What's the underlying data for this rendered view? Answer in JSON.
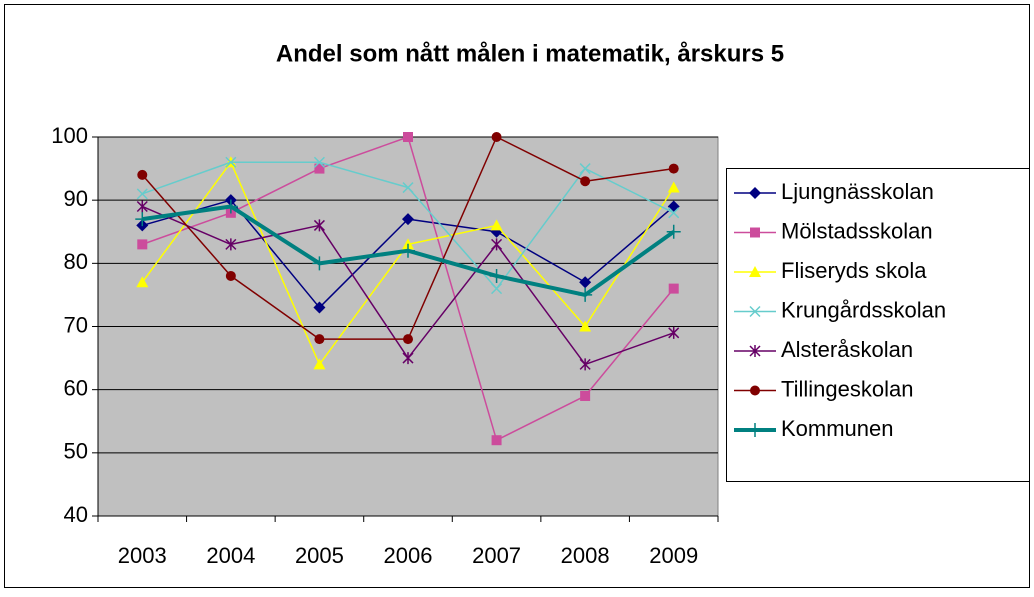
{
  "chart_data": {
    "type": "line",
    "title": "Andel som nått målen i matematik, årskurs 5",
    "categories": [
      "2003",
      "2004",
      "2005",
      "2006",
      "2007",
      "2008",
      "2009"
    ],
    "ylim": [
      40,
      100
    ],
    "yticks": [
      40,
      50,
      60,
      70,
      80,
      90,
      100
    ],
    "grid": true,
    "legend": "right",
    "series": [
      {
        "name": "Ljungnässkolan",
        "color": "#000080",
        "marker": "diamond",
        "values": [
          86,
          90,
          73,
          87,
          85,
          77,
          89
        ]
      },
      {
        "name": "Mölstadsskolan",
        "color": "#cc4c9c",
        "marker": "square",
        "values": [
          83,
          88,
          95,
          100,
          52,
          59,
          76
        ]
      },
      {
        "name": "Fliseryds skola",
        "color": "#ffff00",
        "marker": "triangle",
        "values": [
          77,
          96,
          64,
          83,
          86,
          70,
          92
        ]
      },
      {
        "name": "Krungårdsskolan",
        "color": "#66cccc",
        "marker": "x",
        "values": [
          91,
          96,
          96,
          92,
          76,
          95,
          88
        ]
      },
      {
        "name": "Alsteråskolan",
        "color": "#660066",
        "marker": "star",
        "values": [
          89,
          83,
          86,
          65,
          83,
          64,
          69
        ]
      },
      {
        "name": "Tillingeskolan",
        "color": "#800000",
        "marker": "circle",
        "values": [
          94,
          78,
          68,
          68,
          100,
          93,
          95
        ]
      },
      {
        "name": "Kommunen",
        "color": "#008080",
        "marker": "plus",
        "width": 4,
        "values": [
          87,
          89,
          80,
          82,
          78,
          75,
          85
        ]
      }
    ]
  }
}
